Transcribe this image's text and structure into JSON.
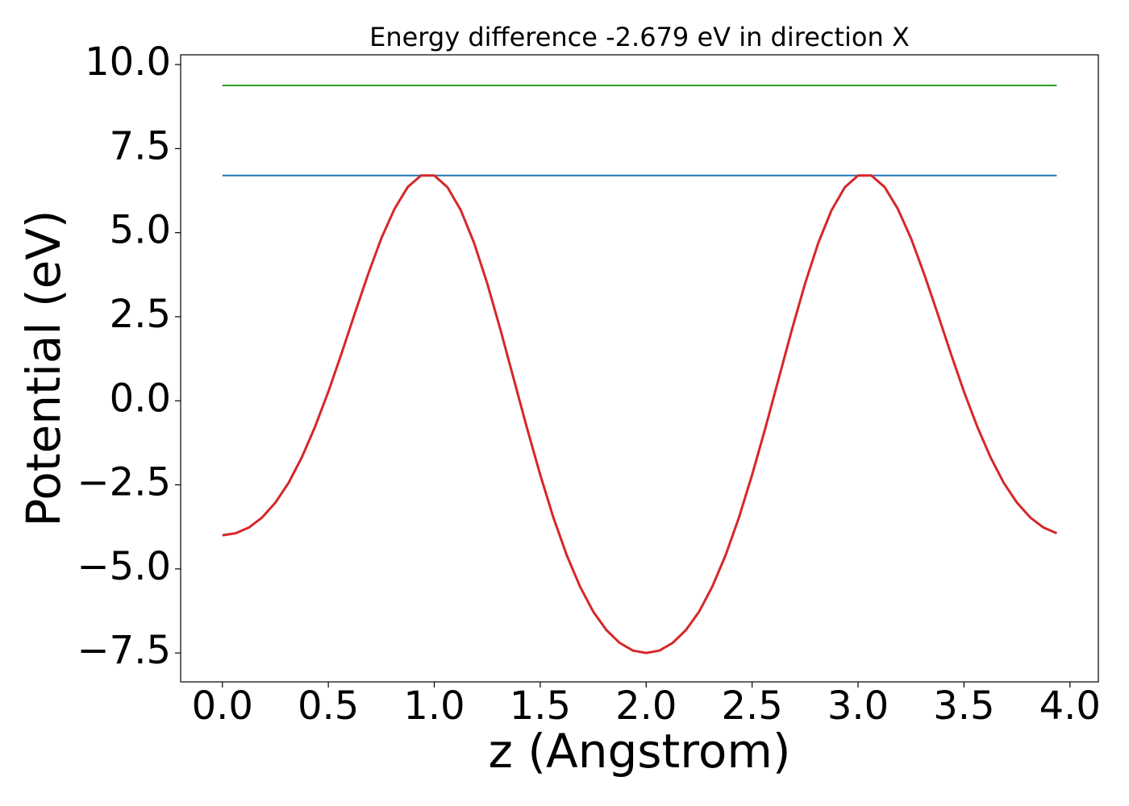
{
  "chart_data": {
    "type": "line",
    "title": "Energy difference -2.679 eV in direction X",
    "x_label": "z (Angstrom)",
    "y_label": "Potential (eV)",
    "xlim": [
      -0.197,
      4.134
    ],
    "ylim": [
      -8.36,
      10.29
    ],
    "xticks": [
      {
        "value": 0,
        "label": "0.0"
      },
      {
        "value": 0.5,
        "label": "0.5"
      },
      {
        "value": 1,
        "label": "1.0"
      },
      {
        "value": 1.5,
        "label": "1.5"
      },
      {
        "value": 2,
        "label": "2.0"
      },
      {
        "value": 2.5,
        "label": "2.5"
      },
      {
        "value": 3,
        "label": "3.0"
      },
      {
        "value": 3.5,
        "label": "3.5"
      },
      {
        "value": 4,
        "label": "4.0"
      }
    ],
    "yticks": [
      {
        "value": -7.5,
        "label": "−7.5"
      },
      {
        "value": -5,
        "label": "−5.0"
      },
      {
        "value": -2.5,
        "label": "−2.5"
      },
      {
        "value": 0,
        "label": "0.0"
      },
      {
        "value": 2.5,
        "label": "2.5"
      },
      {
        "value": 5,
        "label": "5.0"
      },
      {
        "value": 7.5,
        "label": "7.5"
      },
      {
        "value": 10,
        "label": "10.0"
      }
    ],
    "grid": false,
    "series": [
      {
        "color": "#1f77b4",
        "width": 2,
        "x": [
          0,
          3.9375
        ],
        "values": [
          6.7,
          6.7
        ]
      },
      {
        "color": "#2ca02c",
        "width": 2,
        "x": [
          0,
          3.9375
        ],
        "values": [
          9.38,
          9.38
        ]
      },
      {
        "color": "#d62728",
        "width": 3,
        "x": [
          0,
          0.0625,
          0.125,
          0.1875,
          0.25,
          0.3125,
          0.375,
          0.4375,
          0.5,
          0.5625,
          0.625,
          0.6875,
          0.75,
          0.8125,
          0.875,
          0.9375,
          1,
          1.0625,
          1.125,
          1.1875,
          1.25,
          1.3125,
          1.375,
          1.4375,
          1.5,
          1.5625,
          1.625,
          1.6875,
          1.75,
          1.8125,
          1.875,
          1.9375,
          2,
          2.0625,
          2.125,
          2.1875,
          2.25,
          2.3125,
          2.375,
          2.4375,
          2.5,
          2.5625,
          2.625,
          2.6875,
          2.75,
          2.8125,
          2.875,
          2.9375,
          3,
          3.0625,
          3.125,
          3.1875,
          3.25,
          3.3125,
          3.375,
          3.4375,
          3.5,
          3.5625,
          3.625,
          3.6875,
          3.75,
          3.8125,
          3.875,
          3.9375
        ],
        "values": [
          -4.0,
          -3.94,
          -3.77,
          -3.47,
          -3.03,
          -2.44,
          -1.68,
          -0.77,
          0.27,
          1.41,
          2.6,
          3.76,
          4.83,
          5.71,
          6.36,
          6.7,
          6.7,
          6.35,
          5.67,
          4.7,
          3.49,
          2.11,
          0.65,
          -0.81,
          -2.2,
          -3.48,
          -4.59,
          -5.52,
          -6.27,
          -6.82,
          -7.2,
          -7.43,
          -7.5,
          -7.43,
          -7.2,
          -6.82,
          -6.27,
          -5.52,
          -4.59,
          -3.48,
          -2.2,
          -0.81,
          0.65,
          2.11,
          3.49,
          4.7,
          5.67,
          6.35,
          6.7,
          6.7,
          6.36,
          5.71,
          4.83,
          3.76,
          2.6,
          1.41,
          0.27,
          -0.77,
          -1.68,
          -2.44,
          -3.03,
          -3.47,
          -3.77,
          -3.94
        ]
      }
    ]
  }
}
